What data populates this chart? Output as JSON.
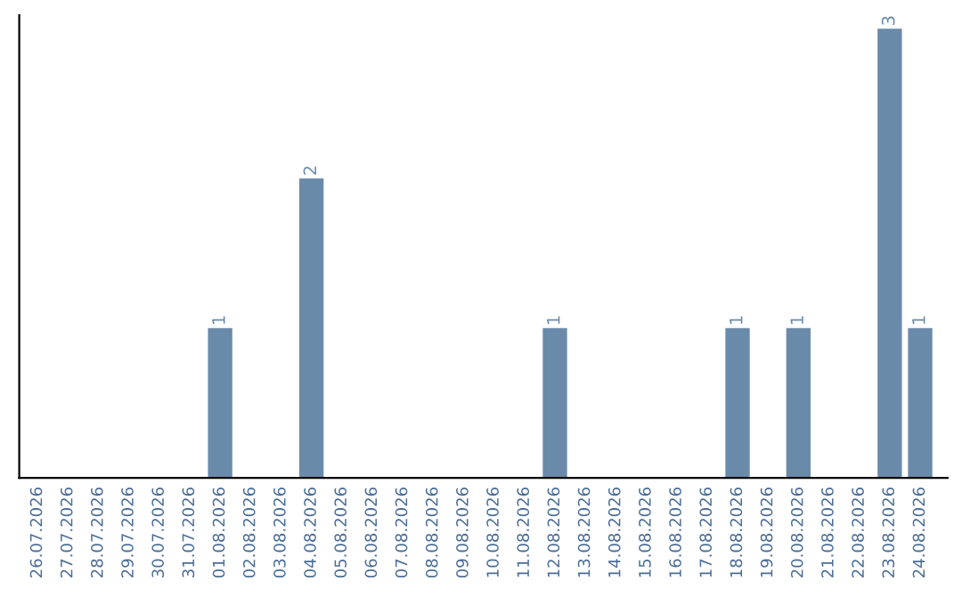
{
  "chart_data": {
    "type": "bar",
    "categories": [
      "26.07.2026",
      "27.07.2026",
      "28.07.2026",
      "29.07.2026",
      "30.07.2026",
      "31.07.2026",
      "01.08.2026",
      "02.08.2026",
      "03.08.2026",
      "04.08.2026",
      "05.08.2026",
      "06.08.2026",
      "07.08.2026",
      "08.08.2026",
      "09.08.2026",
      "10.08.2026",
      "11.08.2026",
      "12.08.2026",
      "13.08.2026",
      "14.08.2026",
      "15.08.2026",
      "16.08.2026",
      "17.08.2026",
      "18.08.2026",
      "19.08.2026",
      "20.08.2026",
      "21.08.2026",
      "22.08.2026",
      "23.08.2026",
      "24.08.2026"
    ],
    "values": [
      0,
      0,
      0,
      0,
      0,
      0,
      1,
      0,
      0,
      2,
      0,
      0,
      0,
      0,
      0,
      0,
      0,
      1,
      0,
      0,
      0,
      0,
      0,
      1,
      0,
      1,
      0,
      0,
      3,
      1
    ],
    "value_labels": [
      null,
      null,
      null,
      null,
      null,
      null,
      "1",
      null,
      null,
      "2",
      null,
      null,
      null,
      null,
      null,
      null,
      null,
      "1",
      null,
      null,
      null,
      null,
      null,
      "1",
      null,
      "1",
      null,
      null,
      "3",
      "1"
    ],
    "color": "#6a8aaa",
    "tick_labels": "x",
    "grid": false,
    "legend": false
  }
}
